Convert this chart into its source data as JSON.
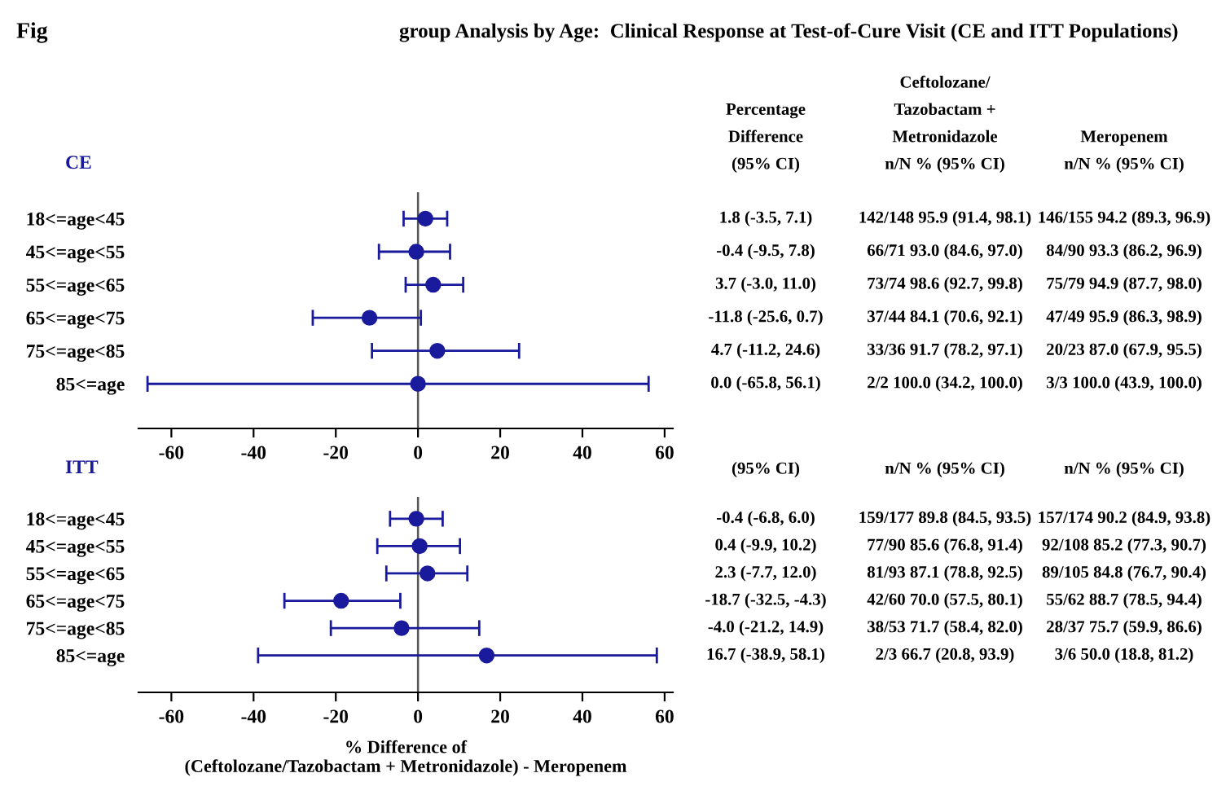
{
  "chart_data": [
    {
      "type": "scatter",
      "orientation": "horizontal",
      "title": "group Analysis by Age:  Clinical Response at Test-of-Cure Visit (CE and ITT Populations)",
      "subtitle": "CE",
      "categories": [
        "18<=age<45",
        "45<=age<55",
        "55<=age<65",
        "65<=age<75",
        "75<=age<85",
        "85<=age"
      ],
      "series": [
        {
          "color": "#1a1a9c",
          "values": [
            1.8,
            -0.4,
            3.7,
            -11.8,
            4.7,
            0.0
          ],
          "errors": [
            [
              -3.5,
              7.1
            ],
            [
              -9.5,
              7.8
            ],
            [
              -3.0,
              11.0
            ],
            [
              -25.6,
              0.7
            ],
            [
              -11.2,
              24.6
            ],
            [
              -65.8,
              56.1
            ]
          ]
        }
      ],
      "marker": "circle",
      "xlim": [
        -68,
        62
      ],
      "xticks": [
        -60,
        -40,
        -20,
        0,
        20,
        40,
        60
      ],
      "ref_lines": [
        {
          "axis": "x",
          "value": 0,
          "color": "#555555"
        }
      ],
      "annotations": [
        "Percentage\nDifference\n(95% CI)",
        "Ceftolozane/\nTazobactam +\nMetronidazole\nn/N % (95% CI)",
        "Meropenem\nn/N % (95% CI)",
        "1.8 (-3.5, 7.1)",
        "-0.4 (-9.5, 7.8)",
        "3.7 (-3.0, 11.0)",
        "-11.8 (-25.6, 0.7)",
        "4.7 (-11.2, 24.6)",
        "0.0 (-65.8, 56.1)",
        "142/148 95.9 (91.4, 98.1)",
        "66/71 93.0 (84.6, 97.0)",
        "73/74 98.6 (92.7, 99.8)",
        "37/44 84.1 (70.6, 92.1)",
        "33/36 91.7 (78.2, 97.1)",
        "2/2 100.0 (34.2, 100.0)",
        "146/155 94.2 (89.3, 96.9)",
        "84/90 93.3 (86.2, 96.9)",
        "75/79 94.9 (87.7, 98.0)",
        "47/49 95.9 (86.3, 98.9)",
        "20/23 87.0 (67.9, 95.5)",
        "3/3 100.0 (43.9, 100.0)",
        "Fig"
      ]
    },
    {
      "type": "scatter",
      "orientation": "horizontal",
      "subtitle": "ITT",
      "xlabel": "% Difference of\n(Ceftolozane/Tazobactam + Metronidazole) - Meropenem",
      "categories": [
        "18<=age<45",
        "45<=age<55",
        "55<=age<65",
        "65<=age<75",
        "75<=age<85",
        "85<=age"
      ],
      "series": [
        {
          "color": "#1a1a9c",
          "values": [
            -0.4,
            0.4,
            2.3,
            -18.7,
            -4.0,
            16.7
          ],
          "errors": [
            [
              -6.8,
              6.0
            ],
            [
              -9.9,
              10.2
            ],
            [
              -7.7,
              12.0
            ],
            [
              -32.5,
              -4.3
            ],
            [
              -21.2,
              14.9
            ],
            [
              -38.9,
              58.1
            ]
          ]
        }
      ],
      "marker": "circle",
      "xlim": [
        -68,
        62
      ],
      "xticks": [
        -60,
        -40,
        -20,
        0,
        20,
        40,
        60
      ],
      "ref_lines": [
        {
          "axis": "x",
          "value": 0,
          "color": "#555555"
        }
      ],
      "annotations": [
        "(95% CI)",
        "n/N % (95% CI)",
        "n/N % (95% CI)",
        "-0.4 (-6.8, 6.0)",
        "0.4 (-9.9, 10.2)",
        "2.3 (-7.7, 12.0)",
        "-18.7 (-32.5, -4.3)",
        "-4.0 (-21.2, 14.9)",
        "16.7 (-38.9, 58.1)",
        "159/177 89.8 (84.5, 93.5)",
        "77/90 85.6 (76.8, 91.4)",
        "81/93 87.1 (78.8, 92.5)",
        "42/60 70.0 (57.5, 80.1)",
        "38/53 71.7 (58.4, 82.0)",
        "2/3 66.7 (20.8, 93.9)",
        "157/174 90.2 (84.9, 93.8)",
        "92/108 85.2 (77.3, 90.7)",
        "89/105 84.8 (76.7, 90.4)",
        "55/62 88.7 (78.5, 94.4)",
        "28/37 75.7 (59.9, 86.6)",
        "3/6 50.0 (18.8, 81.2)"
      ]
    }
  ]
}
